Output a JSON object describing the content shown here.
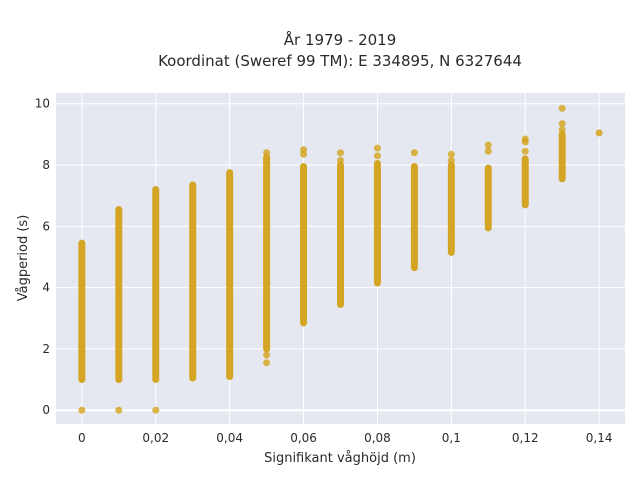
{
  "chart_data": {
    "type": "scatter",
    "title_line1": "År 1979 - 2019",
    "title_line2": "Koordinat (Sweref 99 TM): E 334895, N 6327644",
    "xlabel": "Signifikant våghöjd (m)",
    "ylabel": "Vågperiod (s)",
    "xlim": [
      -0.007,
      0.147
    ],
    "ylim": [
      -0.45,
      10.35
    ],
    "x_ticks": [
      0,
      0.02,
      0.04,
      0.06,
      0.08,
      0.1,
      0.12,
      0.14
    ],
    "x_tick_labels": [
      "0",
      "0,02",
      "0,04",
      "0,06",
      "0,08",
      "0,1",
      "0,12",
      "0,14"
    ],
    "y_ticks": [
      0,
      2,
      4,
      6,
      8,
      10
    ],
    "y_tick_labels": [
      "0",
      "2",
      "4",
      "6",
      "8",
      "10"
    ],
    "grid": true,
    "legend": "none",
    "marker_color": "#d4a21a",
    "plot_background": "#e5e8f0",
    "columns": [
      {
        "x": 0,
        "y_min": 1.0,
        "y_max": 5.45,
        "extra_y": [
          0.0
        ]
      },
      {
        "x": 0.01,
        "y_min": 1.0,
        "y_max": 6.55,
        "extra_y": [
          0.0
        ]
      },
      {
        "x": 0.02,
        "y_min": 1.0,
        "y_max": 7.2,
        "extra_y": [
          0.0
        ]
      },
      {
        "x": 0.03,
        "y_min": 1.05,
        "y_max": 7.35,
        "extra_y": []
      },
      {
        "x": 0.04,
        "y_min": 1.1,
        "y_max": 7.75,
        "extra_y": []
      },
      {
        "x": 0.05,
        "y_min": 2.0,
        "y_max": 8.25,
        "extra_y": [
          8.4,
          1.8,
          1.55
        ]
      },
      {
        "x": 0.06,
        "y_min": 2.85,
        "y_max": 7.95,
        "extra_y": [
          8.5,
          8.35
        ]
      },
      {
        "x": 0.07,
        "y_min": 3.45,
        "y_max": 8.0,
        "extra_y": [
          8.4,
          8.15
        ]
      },
      {
        "x": 0.08,
        "y_min": 4.15,
        "y_max": 8.05,
        "extra_y": [
          8.55,
          8.3
        ]
      },
      {
        "x": 0.09,
        "y_min": 4.65,
        "y_max": 7.95,
        "extra_y": [
          8.4
        ]
      },
      {
        "x": 0.1,
        "y_min": 5.15,
        "y_max": 8.0,
        "extra_y": [
          8.35,
          8.15
        ]
      },
      {
        "x": 0.11,
        "y_min": 5.95,
        "y_max": 7.9,
        "extra_y": [
          8.65,
          8.45
        ]
      },
      {
        "x": 0.12,
        "y_min": 6.7,
        "y_max": 8.2,
        "extra_y": [
          8.85,
          8.75,
          8.45
        ]
      },
      {
        "x": 0.13,
        "y_min": 7.55,
        "y_max": 9.0,
        "extra_y": [
          9.85,
          9.35,
          9.15
        ]
      },
      {
        "x": 0.14,
        "y_min": 9.05,
        "y_max": 9.05,
        "extra_y": []
      }
    ]
  }
}
